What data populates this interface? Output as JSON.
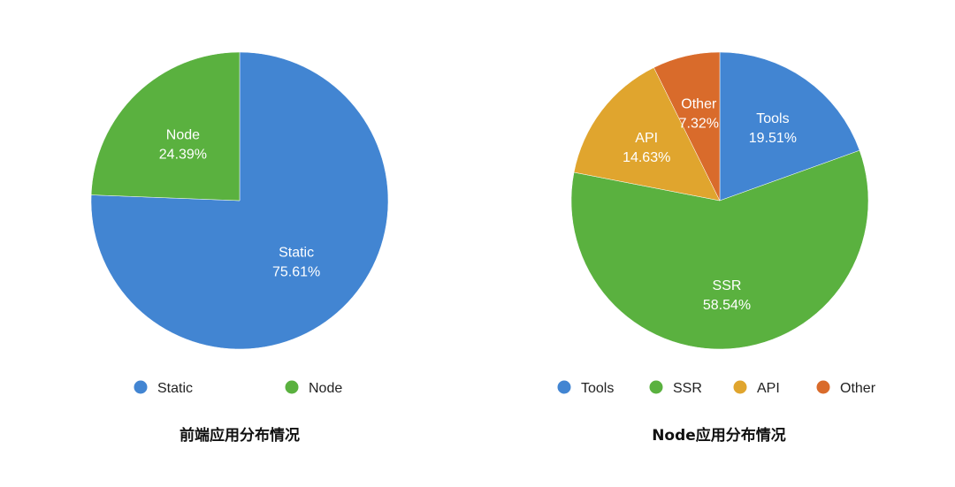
{
  "chart_data": [
    {
      "type": "pie",
      "title": "前端应用分布情况",
      "start": "12 o'clock",
      "direction": "clockwise",
      "legend_position": "bottom",
      "slices": [
        {
          "label": "Static",
          "value": 75.61,
          "value_text": "75.61%",
          "color": "#4285d2"
        },
        {
          "label": "Node",
          "value": 24.39,
          "value_text": "24.39%",
          "color": "#5ab13f"
        }
      ]
    },
    {
      "type": "pie",
      "title": "Node应用分布情况",
      "start": "12 o'clock",
      "direction": "clockwise",
      "legend_position": "bottom",
      "slices": [
        {
          "label": "Tools",
          "value": 19.51,
          "value_text": "19.51%",
          "color": "#4285d2"
        },
        {
          "label": "SSR",
          "value": 58.54,
          "value_text": "58.54%",
          "color": "#5ab13f"
        },
        {
          "label": "API",
          "value": 14.63,
          "value_text": "14.63%",
          "color": "#e0a52e"
        },
        {
          "label": "Other",
          "value": 7.32,
          "value_text": "7.32%",
          "color": "#d96b2b"
        }
      ]
    }
  ]
}
